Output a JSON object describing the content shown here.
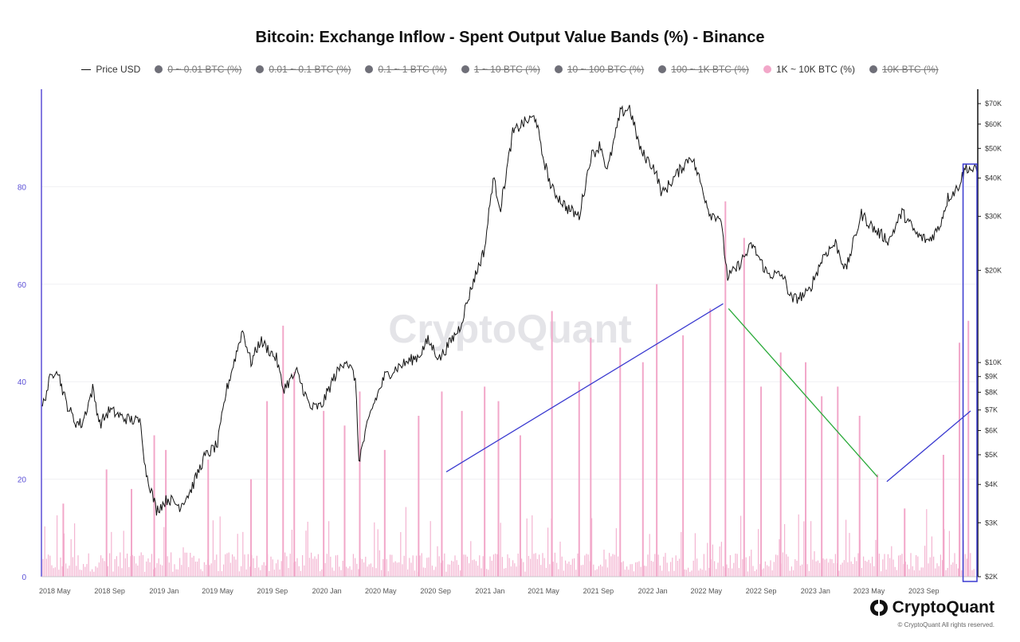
{
  "chart_data": {
    "type": "line+bar",
    "title": "Bitcoin: Exchange Inflow - Spent Output Value Bands (%) - Binance",
    "watermark": "CryptoQuant",
    "legend": [
      {
        "label": "Price USD",
        "kind": "line",
        "active": true
      },
      {
        "label": "0 ~ 0.01 BTC (%)",
        "kind": "dot",
        "active": false
      },
      {
        "label": "0.01 ~ 0.1 BTC (%)",
        "kind": "dot",
        "active": false
      },
      {
        "label": "0.1 ~ 1 BTC (%)",
        "kind": "dot",
        "active": false
      },
      {
        "label": "1 ~ 10 BTC (%)",
        "kind": "dot",
        "active": false
      },
      {
        "label": "10 ~ 100 BTC (%)",
        "kind": "dot",
        "active": false
      },
      {
        "label": "100 ~ 1K BTC (%)",
        "kind": "dot",
        "active": false
      },
      {
        "label": "1K ~ 10K BTC (%)",
        "kind": "dot",
        "active": true
      },
      {
        "label": "10K BTC (%)",
        "kind": "dot",
        "active": false
      }
    ],
    "x_ticks": [
      "2018 May",
      "2018 Sep",
      "2019 Jan",
      "2019 May",
      "2019 Sep",
      "2020 Jan",
      "2020 May",
      "2020 Sep",
      "2021 Jan",
      "2021 May",
      "2021 Sep",
      "2022 Jan",
      "2022 May",
      "2022 Sep",
      "2023 Jan",
      "2023 May",
      "2023 Sep"
    ],
    "x_range": [
      "2018-04-01",
      "2023-12-31"
    ],
    "y_left": {
      "ticks": [
        0,
        20,
        40,
        60,
        80
      ],
      "range": [
        0,
        100
      ],
      "color": "#5b4fd6"
    },
    "y_right": {
      "scale": "log",
      "ticks": [
        "$2K",
        "$3K",
        "$4K",
        "$5K",
        "$6K",
        "$7K",
        "$8K",
        "$9K",
        "$10K",
        "$20K",
        "$30K",
        "$40K",
        "$50K",
        "$60K",
        "$70K"
      ],
      "tick_values": [
        2000,
        3000,
        4000,
        5000,
        6000,
        7000,
        8000,
        9000,
        10000,
        20000,
        30000,
        40000,
        50000,
        60000,
        70000
      ],
      "range": [
        2000,
        78000
      ]
    },
    "series": [
      {
        "name": "Price USD",
        "type": "line",
        "color": "#111111",
        "points": [
          [
            "2018-04-01",
            7000
          ],
          [
            "2018-04-20",
            8800
          ],
          [
            "2018-05-05",
            9700
          ],
          [
            "2018-05-25",
            7500
          ],
          [
            "2018-06-15",
            6400
          ],
          [
            "2018-07-01",
            6300
          ],
          [
            "2018-07-25",
            8200
          ],
          [
            "2018-08-10",
            6300
          ],
          [
            "2018-09-01",
            7000
          ],
          [
            "2018-10-01",
            6600
          ],
          [
            "2018-11-10",
            6400
          ],
          [
            "2018-11-20",
            4500
          ],
          [
            "2018-12-15",
            3300
          ],
          [
            "2019-01-10",
            3600
          ],
          [
            "2019-02-05",
            3400
          ],
          [
            "2019-03-01",
            3800
          ],
          [
            "2019-04-01",
            4900
          ],
          [
            "2019-05-01",
            5400
          ],
          [
            "2019-05-20",
            8000
          ],
          [
            "2019-06-26",
            12800
          ],
          [
            "2019-07-15",
            10000
          ],
          [
            "2019-08-05",
            11800
          ],
          [
            "2019-09-10",
            10300
          ],
          [
            "2019-09-25",
            8200
          ],
          [
            "2019-10-26",
            9300
          ],
          [
            "2019-11-25",
            7100
          ],
          [
            "2019-12-20",
            7200
          ],
          [
            "2020-01-15",
            8800
          ],
          [
            "2020-02-12",
            10300
          ],
          [
            "2020-03-05",
            8900
          ],
          [
            "2020-03-13",
            4800
          ],
          [
            "2020-04-10",
            7000
          ],
          [
            "2020-05-10",
            9000
          ],
          [
            "2020-06-10",
            9700
          ],
          [
            "2020-07-25",
            10500
          ],
          [
            "2020-08-15",
            11800
          ],
          [
            "2020-09-10",
            10300
          ],
          [
            "2020-10-25",
            13000
          ],
          [
            "2020-11-25",
            18500
          ],
          [
            "2020-12-20",
            23500
          ],
          [
            "2021-01-08",
            40000
          ],
          [
            "2021-01-25",
            32000
          ],
          [
            "2021-02-21",
            56000
          ],
          [
            "2021-03-13",
            60000
          ],
          [
            "2021-04-14",
            63500
          ],
          [
            "2021-04-25",
            50000
          ],
          [
            "2021-05-19",
            37000
          ],
          [
            "2021-06-22",
            32000
          ],
          [
            "2021-07-20",
            30000
          ],
          [
            "2021-08-15",
            47000
          ],
          [
            "2021-09-06",
            51500
          ],
          [
            "2021-09-21",
            42000
          ],
          [
            "2021-10-20",
            65000
          ],
          [
            "2021-11-10",
            68000
          ],
          [
            "2021-12-05",
            49000
          ],
          [
            "2022-01-05",
            43000
          ],
          [
            "2022-01-22",
            35500
          ],
          [
            "2022-03-28",
            47500
          ],
          [
            "2022-04-15",
            40000
          ],
          [
            "2022-05-10",
            30500
          ],
          [
            "2022-06-01",
            30000
          ],
          [
            "2022-06-18",
            19000
          ],
          [
            "2022-07-05",
            20000
          ],
          [
            "2022-08-12",
            24200
          ],
          [
            "2022-09-15",
            19500
          ],
          [
            "2022-10-20",
            19200
          ],
          [
            "2022-11-09",
            16000
          ],
          [
            "2022-12-15",
            16800
          ],
          [
            "2023-01-20",
            22500
          ],
          [
            "2023-02-15",
            24500
          ],
          [
            "2023-03-10",
            20000
          ],
          [
            "2023-04-14",
            30500
          ],
          [
            "2023-05-15",
            27000
          ],
          [
            "2023-06-15",
            25000
          ],
          [
            "2023-07-14",
            31000
          ],
          [
            "2023-08-17",
            26000
          ],
          [
            "2023-09-11",
            25000
          ],
          [
            "2023-10-05",
            27500
          ],
          [
            "2023-10-25",
            34500
          ],
          [
            "2023-11-15",
            37000
          ],
          [
            "2023-12-05",
            43500
          ],
          [
            "2023-12-20",
            42500
          ],
          [
            "2023-12-31",
            42200
          ]
        ]
      },
      {
        "name": "1K ~ 10K BTC (%)",
        "type": "bar",
        "color": "#f2a7c9",
        "points": [
          [
            "2018-05-20",
            15
          ],
          [
            "2018-08-25",
            22
          ],
          [
            "2018-10-20",
            18
          ],
          [
            "2018-12-10",
            29
          ],
          [
            "2019-01-05",
            26
          ],
          [
            "2019-04-10",
            24
          ],
          [
            "2019-07-15",
            20
          ],
          [
            "2019-08-20",
            36
          ],
          [
            "2019-09-25",
            51.5
          ],
          [
            "2019-10-20",
            42
          ],
          [
            "2019-12-25",
            34
          ],
          [
            "2020-02-10",
            31
          ],
          [
            "2020-03-15",
            38
          ],
          [
            "2020-05-10",
            26
          ],
          [
            "2020-07-25",
            33
          ],
          [
            "2020-09-15",
            38
          ],
          [
            "2020-10-30",
            34
          ],
          [
            "2020-12-20",
            39
          ],
          [
            "2021-01-20",
            36
          ],
          [
            "2021-03-10",
            29
          ],
          [
            "2021-05-20",
            54.5
          ],
          [
            "2021-07-20",
            40
          ],
          [
            "2021-08-15",
            49
          ],
          [
            "2021-10-20",
            47
          ],
          [
            "2021-12-10",
            44
          ],
          [
            "2022-01-10",
            60
          ],
          [
            "2022-03-10",
            49.5
          ],
          [
            "2022-05-10",
            55
          ],
          [
            "2022-06-13",
            77
          ],
          [
            "2022-07-25",
            69.5
          ],
          [
            "2022-09-01",
            39
          ],
          [
            "2022-10-15",
            46
          ],
          [
            "2022-12-10",
            44
          ],
          [
            "2023-01-15",
            37
          ],
          [
            "2023-02-20",
            39
          ],
          [
            "2023-04-10",
            33
          ],
          [
            "2023-05-20",
            21
          ],
          [
            "2023-07-20",
            14
          ],
          [
            "2023-10-15",
            25
          ],
          [
            "2023-11-20",
            48
          ],
          [
            "2023-12-10",
            52.5
          ]
        ]
      }
    ],
    "annotations": [
      {
        "type": "line",
        "color": "#3a3ad0",
        "from": [
          "2020-09-25",
          21.5
        ],
        "to": [
          "2022-06-08",
          56
        ]
      },
      {
        "type": "line",
        "color": "#2aaa3a",
        "from": [
          "2022-06-20",
          55
        ],
        "to": [
          "2023-05-20",
          20.5
        ]
      },
      {
        "type": "line",
        "color": "#3a3ad0",
        "from": [
          "2023-06-10",
          19.5
        ],
        "to": [
          "2023-12-15",
          34
        ]
      },
      {
        "type": "box",
        "color": "#3a3ad0",
        "from": "2023-11-28",
        "to": "2023-12-31"
      }
    ]
  },
  "brand": {
    "logo_text": "CryptoQuant",
    "copyright": "© CryptoQuant All rights reserved."
  }
}
